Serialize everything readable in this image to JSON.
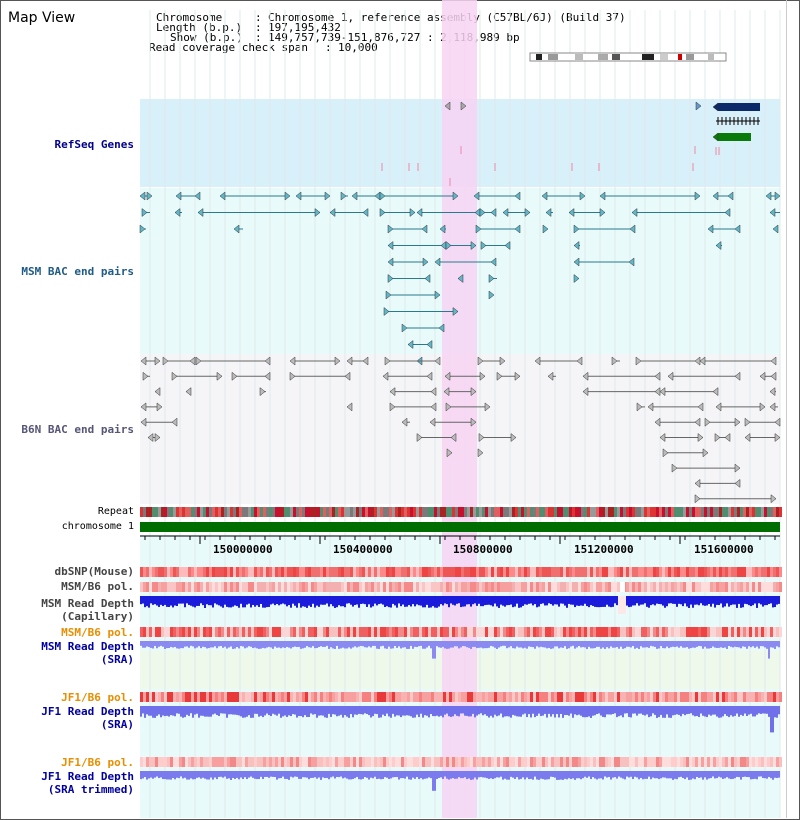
{
  "title": "Map View",
  "info": {
    "chromosome_label": "Chromosome",
    "chromosome_value": "Chromosome 1, reference assembly (C57BL/6J) (Build 37)",
    "length_label": "Length (b.p.)",
    "length_value": "197,195,432",
    "show_label": "Show (b.p.)",
    "show_value": "149,757,739-151,876,727 : 2,118,989 bp",
    "coverage_label": "Read coverage check span",
    "coverage_value": "10,000"
  },
  "tracks": {
    "refseq": "RefSeq Genes",
    "msm_bac": "MSM BAC end pairs",
    "b6n_bac": "B6N BAC end pairs",
    "repeat": "Repeat",
    "chromosome": "chromosome 1",
    "dbsnp": "dbSNP(Mouse)",
    "msm_b6_pol": "MSM/B6 pol.",
    "msm_depth_cap_1": "MSM Read Depth",
    "msm_depth_cap_2": "(Capillary)",
    "msm_b6_pol_2": "MSM/B6 pol.",
    "msm_depth_sra_1": "MSM Read Depth",
    "msm_depth_sra_2": "(SRA)",
    "jf1_b6_pol": "JF1/B6 pol.",
    "jf1_depth_sra_1": "JF1 Read Depth",
    "jf1_depth_sra_2": "(SRA)",
    "jf1_b6_pol_2": "JF1/B6 pol.",
    "jf1_depth_trim_1": "JF1 Read Depth",
    "jf1_depth_trim_2": "(SRA trimmed)"
  },
  "axis": {
    "ticks": [
      "150000000",
      "150400000",
      "150800000",
      "151200000",
      "151600000"
    ]
  },
  "colors": {
    "refseq_bg": "#d8f0fa",
    "msm_bg": "#e8fafa",
    "b6n_bg": "#f5f5f8",
    "highlight": "#f7d4f3",
    "chromosome": "#006d00",
    "msm_label": "#1e5b86",
    "refseq_label": "#00008b",
    "pol_label": "#e88e00",
    "depth_label": "#0000a0"
  }
}
